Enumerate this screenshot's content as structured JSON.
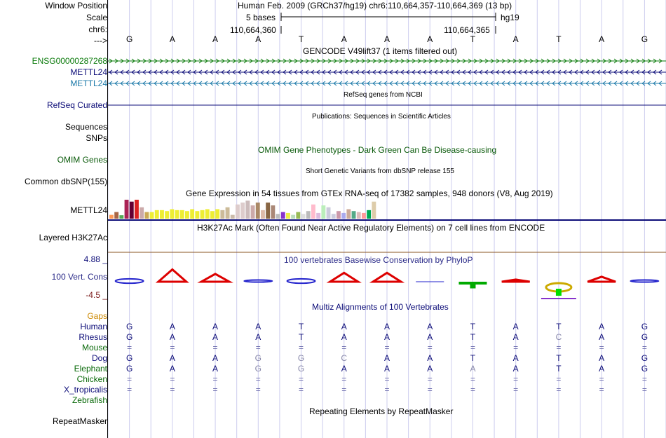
{
  "header": {
    "window_position_label": "Window Position",
    "scale_label": "Scale",
    "chr_label": "chr6:",
    "arrow_label": "--->",
    "position_text": "Human Feb. 2009 (GRCh37/hg19)   chr6:110,664,357-110,664,369 (13 bp)",
    "scale_text": "5 bases",
    "assembly": "hg19",
    "coord_left": "110,664,360",
    "coord_right": "110,664,365",
    "bases": [
      "G",
      "A",
      "A",
      "A",
      "T",
      "A",
      "A",
      "A",
      "T",
      "A",
      "T",
      "A",
      "G"
    ]
  },
  "gencode": {
    "title": "GENCODE V49lift37 (1 items filtered out)",
    "tracks": [
      {
        "label": "ENSG00000287268",
        "color": "#0a7a0a",
        "direction": "forward"
      },
      {
        "label": "METTL24",
        "color": "#0c0c78",
        "direction": "reverse"
      },
      {
        "label": "METTL24",
        "color": "#1a78a8",
        "direction": "reverse"
      }
    ]
  },
  "refseq": {
    "title": "RefSeq genes from NCBI",
    "label": "RefSeq Curated",
    "color": "#0c0c78"
  },
  "publications": {
    "title": "Publications: Sequences in Scientific Articles",
    "labels": [
      "Sequences",
      "SNPs"
    ]
  },
  "omim": {
    "title": "OMIM Gene Phenotypes - Dark Green Can Be Disease-causing",
    "label": "OMIM Genes",
    "color": "#0a5a0a"
  },
  "dbsnp": {
    "title": "Short Genetic Variants from dbSNP release 155",
    "label": "Common dbSNP(155)"
  },
  "gtex": {
    "title": "Gene Expression in 54 tissues from GTEx RNA-seq of 17382 samples, 948 donors (V8, Aug 2019)",
    "label": "METTL24",
    "bars": [
      {
        "v": 0.2,
        "c": "#ff9955"
      },
      {
        "v": 0.35,
        "c": "#aa6644"
      },
      {
        "v": 0.18,
        "c": "#55aa55"
      },
      {
        "v": 1.0,
        "c": "#aa2255"
      },
      {
        "v": 0.9,
        "c": "#660033"
      },
      {
        "v": 1.0,
        "c": "#dd2222"
      },
      {
        "v": 0.6,
        "c": "#ccaaaa"
      },
      {
        "v": 0.35,
        "c": "#ccaa55"
      },
      {
        "v": 0.35,
        "c": "#eeee33"
      },
      {
        "v": 0.45,
        "c": "#eeee33"
      },
      {
        "v": 0.45,
        "c": "#eeee33"
      },
      {
        "v": 0.4,
        "c": "#eeee33"
      },
      {
        "v": 0.5,
        "c": "#eeee33"
      },
      {
        "v": 0.45,
        "c": "#eeee33"
      },
      {
        "v": 0.45,
        "c": "#eeee33"
      },
      {
        "v": 0.4,
        "c": "#eeee33"
      },
      {
        "v": 0.5,
        "c": "#eeee33"
      },
      {
        "v": 0.4,
        "c": "#eeee33"
      },
      {
        "v": 0.45,
        "c": "#eeee33"
      },
      {
        "v": 0.5,
        "c": "#eeee33"
      },
      {
        "v": 0.4,
        "c": "#eeee33"
      },
      {
        "v": 0.5,
        "c": "#eeee33"
      },
      {
        "v": 0.45,
        "c": "#ccbb99"
      },
      {
        "v": 0.6,
        "c": "#ccbb99"
      },
      {
        "v": 0.2,
        "c": "#ccbbaa"
      },
      {
        "v": 0.75,
        "c": "#ddcccc"
      },
      {
        "v": 0.85,
        "c": "#ddcccc"
      },
      {
        "v": 0.95,
        "c": "#ccbbbb"
      },
      {
        "v": 0.7,
        "c": "#ccaaaa"
      },
      {
        "v": 0.85,
        "c": "#aa8866"
      },
      {
        "v": 0.45,
        "c": "#ddbbaa"
      },
      {
        "v": 0.85,
        "c": "#886644"
      },
      {
        "v": 0.7,
        "c": "#aa8877"
      },
      {
        "v": 0.25,
        "c": "#bbbbbb"
      },
      {
        "v": 0.35,
        "c": "#8833cc"
      },
      {
        "v": 0.3,
        "c": "#eeee44"
      },
      {
        "v": 0.2,
        "c": "#bbddbb"
      },
      {
        "v": 0.35,
        "c": "#99bb55"
      },
      {
        "v": 0.25,
        "c": "#dddddd"
      },
      {
        "v": 0.4,
        "c": "#bbbbbb"
      },
      {
        "v": 0.75,
        "c": "#ffbbcc"
      },
      {
        "v": 0.3,
        "c": "#ddbbdd"
      },
      {
        "v": 0.7,
        "c": "#bbeebb"
      },
      {
        "v": 0.6,
        "c": "#ccccdd"
      },
      {
        "v": 0.25,
        "c": "#ccccdd"
      },
      {
        "v": 0.4,
        "c": "#cc99aa"
      },
      {
        "v": 0.3,
        "c": "#aaaaee"
      },
      {
        "v": 0.5,
        "c": "#ccaa99"
      },
      {
        "v": 0.4,
        "c": "#55aa88"
      },
      {
        "v": 0.35,
        "c": "#ddbbbb"
      },
      {
        "v": 0.3,
        "c": "#ff9999"
      },
      {
        "v": 0.45,
        "c": "#00aa55"
      },
      {
        "v": 0.9,
        "c": "#ddccaa"
      }
    ]
  },
  "h3k27ac": {
    "title": "H3K27Ac Mark (Often Found Near Active Regulatory Elements) on 7 cell lines from ENCODE",
    "label": "Layered H3K27Ac"
  },
  "conservation": {
    "title": "100 vertebrates Basewise Conservation by PhyloP",
    "label": "100 Vert. Cons",
    "max_label": "4.88 _",
    "min_label": "-4.5 _",
    "scores": [
      {
        "b": "C",
        "v": 0.3,
        "c": "#2222cc"
      },
      {
        "b": "A",
        "v": 1.0,
        "c": "#dd0000"
      },
      {
        "b": "A",
        "v": 0.6,
        "c": "#dd0000"
      },
      {
        "b": "C",
        "v": 0.05,
        "c": "#2222cc"
      },
      {
        "b": "C",
        "v": 0.3,
        "c": "#2222cc"
      },
      {
        "b": "A",
        "v": 0.7,
        "c": "#dd0000"
      },
      {
        "b": "A",
        "v": 0.7,
        "c": "#dd0000"
      },
      {
        "b": "-",
        "v": 0.0,
        "c": "#2222cc"
      },
      {
        "b": "T",
        "v": -0.5,
        "c": "#00aa00"
      },
      {
        "b": "A",
        "v": -0.1,
        "c": "#dd0000"
      },
      {
        "b": "G",
        "v": -1.0,
        "c": "#ccaa00"
      },
      {
        "b": "A",
        "v": 0.35,
        "c": "#dd0000"
      },
      {
        "b": "C",
        "v": 0.1,
        "c": "#2222cc"
      }
    ]
  },
  "multiz": {
    "title": "Multiz Alignments of 100 Vertebrates",
    "gaps_label": "Gaps",
    "gaps_color": "#cc8800",
    "species": [
      {
        "name": "Human",
        "color": "#0c0c78",
        "bases": [
          "G",
          "A",
          "A",
          "A",
          "T",
          "A",
          "A",
          "A",
          "T",
          "A",
          "T",
          "A",
          "G"
        ]
      },
      {
        "name": "Rhesus",
        "color": "#0c0c78",
        "bases": [
          "G",
          "A",
          "A",
          "A",
          "T",
          "A",
          "A",
          "A",
          "T",
          "A",
          "C",
          "A",
          "G"
        ]
      },
      {
        "name": "Mouse",
        "color": "#0a6a0a",
        "bases": [
          "=",
          "=",
          "=",
          "=",
          "=",
          "=",
          "=",
          "=",
          "=",
          "=",
          "=",
          "=",
          "="
        ]
      },
      {
        "name": "Dog",
        "color": "#0c0c78",
        "bases": [
          "G",
          "A",
          "A",
          "G",
          "G",
          "C",
          "A",
          "A",
          "T",
          "A",
          "T",
          "A",
          "G"
        ]
      },
      {
        "name": "Elephant",
        "color": "#0a6a0a",
        "bases": [
          "G",
          "A",
          "A",
          "G",
          "G",
          "A",
          "A",
          "A",
          "A",
          "A",
          "T",
          "A",
          "G"
        ]
      },
      {
        "name": "Chicken",
        "color": "#0a6a0a",
        "bases": [
          "=",
          "=",
          "=",
          "=",
          "=",
          "=",
          "=",
          "=",
          "=",
          "=",
          "=",
          "=",
          "="
        ]
      },
      {
        "name": "X_tropicalis",
        "color": "#0c0c78",
        "bases": [
          "=",
          "=",
          "=",
          "=",
          "=",
          "=",
          "=",
          "=",
          "=",
          "=",
          "=",
          "=",
          "="
        ]
      },
      {
        "name": "Zebrafish",
        "color": "#0a6a0a",
        "bases": [
          "",
          "",
          "",
          "",
          "",
          "",
          "",
          "",
          "",
          "",
          "",
          "",
          ""
        ]
      }
    ]
  },
  "repeatmasker": {
    "title": "Repeating Elements by RepeatMasker",
    "label": "RepeatMasker"
  }
}
